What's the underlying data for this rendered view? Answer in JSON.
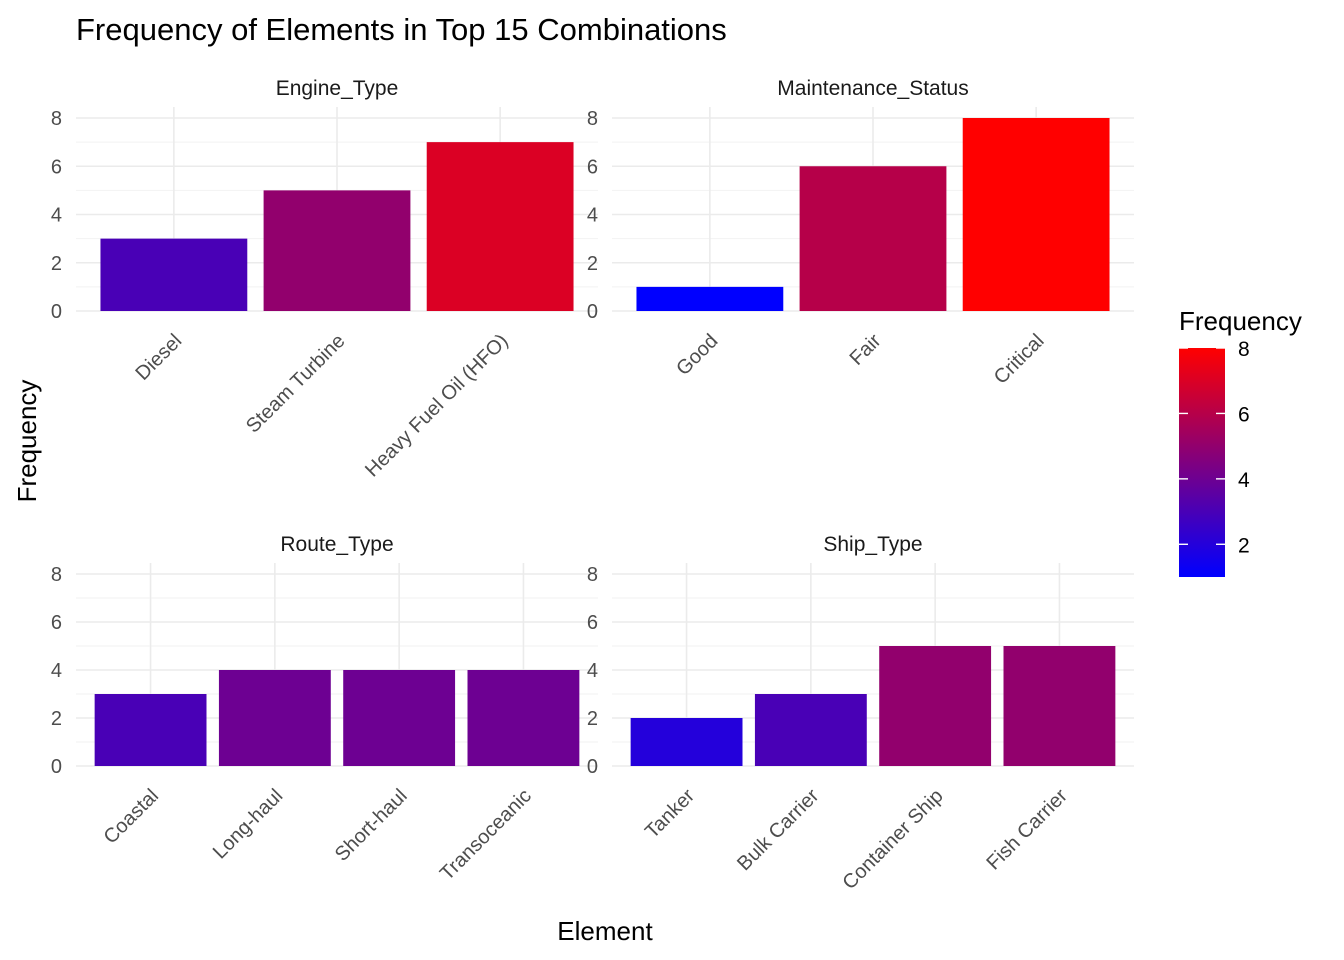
{
  "chart_data": {
    "type": "bar",
    "title": "Frequency of Elements in Top 15 Combinations",
    "xlabel": "Element",
    "ylabel": "Frequency",
    "ylim": [
      0,
      8
    ],
    "yticks": [
      0,
      2,
      4,
      6,
      8
    ],
    "facet_layout": "2x2 grid",
    "grid": true,
    "legend": {
      "title": "Frequency",
      "placement": "right",
      "range": [
        1,
        8
      ],
      "ticks": [
        2,
        4,
        6,
        8
      ],
      "low_color": "#0000FF",
      "high_color": "#FF0000"
    },
    "facets": [
      {
        "name": "Engine_Type",
        "categories": [
          "Diesel",
          "Steam Turbine",
          "Heavy Fuel Oil (HFO)"
        ],
        "values": [
          3,
          5,
          7
        ]
      },
      {
        "name": "Maintenance_Status",
        "categories": [
          "Good",
          "Fair",
          "Critical"
        ],
        "values": [
          1,
          6,
          8
        ]
      },
      {
        "name": "Route_Type",
        "categories": [
          "Coastal",
          "Long-haul",
          "Short-haul",
          "Transoceanic"
        ],
        "values": [
          3,
          4,
          4,
          4
        ]
      },
      {
        "name": "Ship_Type",
        "categories": [
          "Tanker",
          "Bulk Carrier",
          "Container Ship",
          "Fish Carrier"
        ],
        "values": [
          2,
          3,
          5,
          5
        ]
      }
    ]
  }
}
